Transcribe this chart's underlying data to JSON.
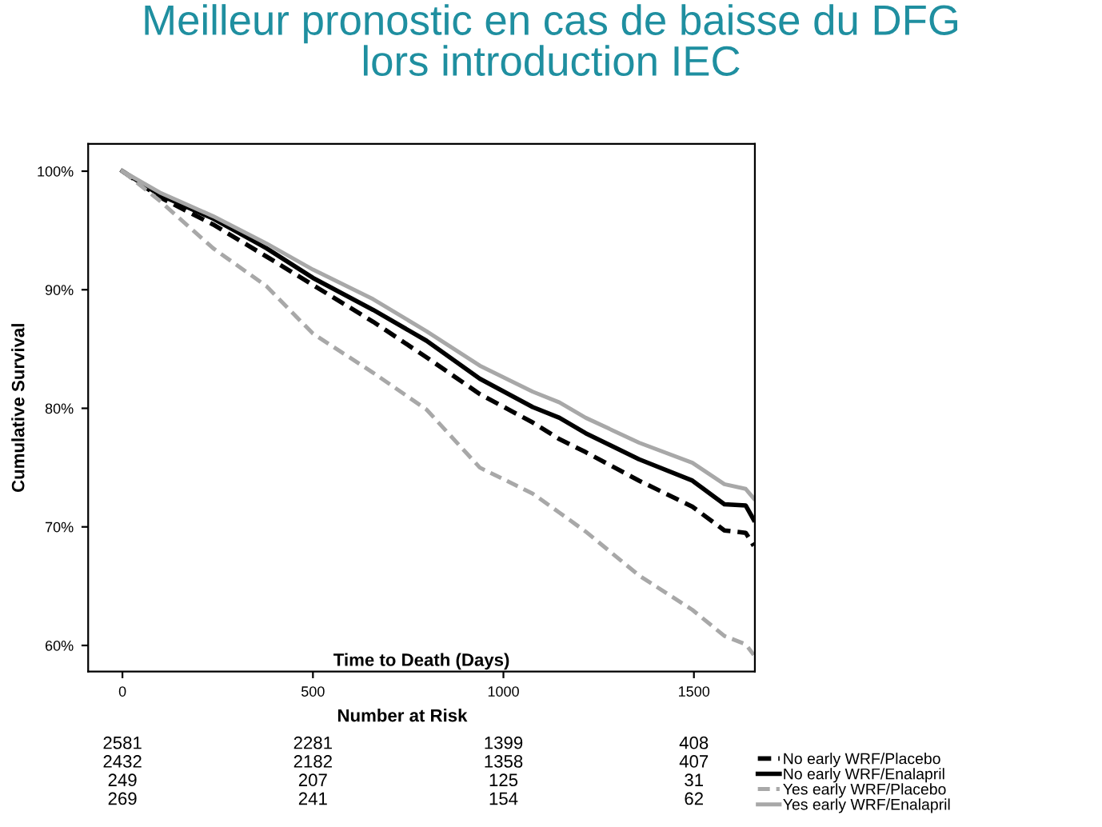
{
  "chart_data": {
    "type": "line",
    "title": "Meilleur pronostic en cas de baisse du DFG\nlors introduction IEC",
    "xlabel": "Time to Death (Days)",
    "ylabel": "Cumulative Survival",
    "x": [
      0,
      98,
      238,
      378,
      500,
      658,
      798,
      938,
      1077,
      1147,
      1216,
      1356,
      1496,
      1580,
      1636,
      1657
    ],
    "series": [
      {
        "name": "No early WRF/Placebo",
        "color": "#000000",
        "line_style": "dashed",
        "values": [
          100,
          97.8,
          95.5,
          92.8,
          90.4,
          87.3,
          84.3,
          81.2,
          78.8,
          77.4,
          76.3,
          73.9,
          71.7,
          69.7,
          69.5,
          68.4
        ]
      },
      {
        "name": "No early WRF/Enalapril",
        "color": "#000000",
        "line_style": "solid",
        "values": [
          100,
          98.0,
          96.0,
          93.5,
          91.0,
          88.3,
          85.7,
          82.5,
          80.1,
          79.2,
          77.9,
          75.7,
          73.9,
          71.9,
          71.8,
          70.6
        ]
      },
      {
        "name": "Yes early WRF/Placebo",
        "color": "#a8a8a8",
        "line_style": "dashed",
        "values": [
          100,
          97.5,
          93.5,
          90.3,
          86.3,
          83.0,
          79.9,
          75.0,
          72.8,
          71.2,
          69.6,
          65.9,
          63.0,
          60.8,
          60.1,
          59.2
        ]
      },
      {
        "name": "Yes early WRF/Enalapril",
        "color": "#a8a8a8",
        "line_style": "solid",
        "values": [
          100,
          98.2,
          96.2,
          93.9,
          91.7,
          89.2,
          86.5,
          83.6,
          81.4,
          80.5,
          79.2,
          77.1,
          75.4,
          73.6,
          73.2,
          72.4
        ]
      }
    ],
    "xlim": [
      -90,
      1660
    ],
    "ylim": [
      57.8,
      102.3
    ],
    "xticks": [
      0,
      500,
      1000,
      1500
    ],
    "yticks": [
      {
        "value": 60,
        "label": "60%"
      },
      {
        "value": 70,
        "label": "70%"
      },
      {
        "value": 80,
        "label": "80%"
      },
      {
        "value": 90,
        "label": "90%"
      },
      {
        "value": 100,
        "label": "100%"
      }
    ],
    "grid": false,
    "legend": "bottom right",
    "annotations": [
      "Number at Risk",
      "2581",
      "2281",
      "1399",
      "408",
      "2432",
      "2182",
      "1358",
      "407",
      "249",
      "207",
      "125",
      "31",
      "269",
      "241",
      "154",
      "62"
    ]
  }
}
